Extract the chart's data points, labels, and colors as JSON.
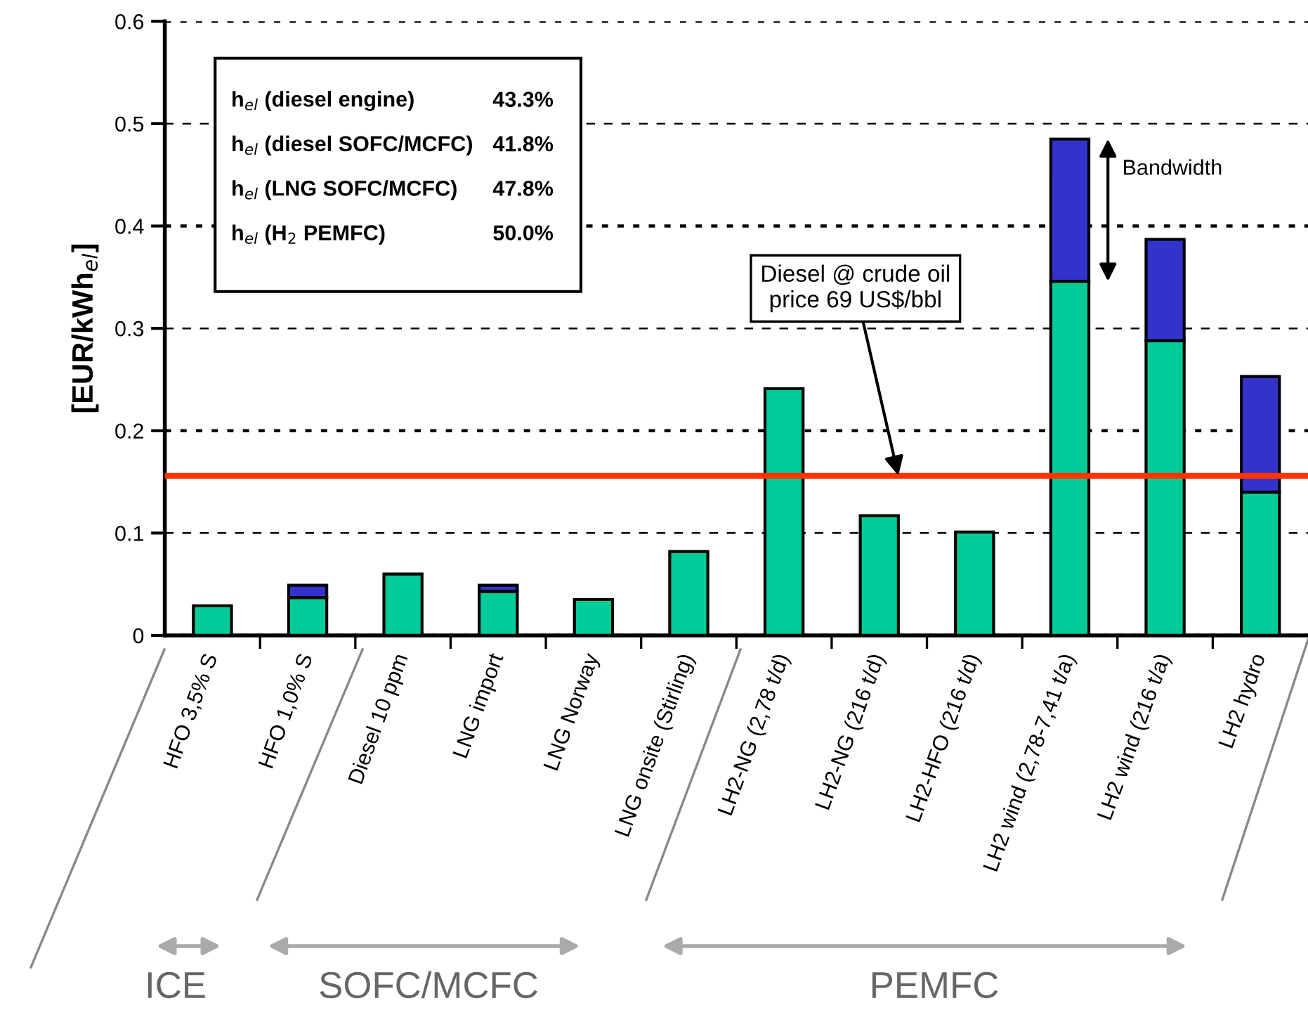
{
  "chart_data": {
    "type": "bar",
    "stacked": true,
    "ylabel": "[EUR/kWh$_{el}$]",
    "categories": [
      "HFO 3,5% S",
      "HFO 1,0% S",
      "Diesel 10 ppm",
      "LNG import",
      "LNG Norway",
      "LNG onsite (Stirling)",
      "LH2-NG (2,78 t/d)",
      "LH2-NG (216 t/d)",
      "LH2-HFO (216 t/d)",
      "LH2 wind (2,78-7,41 t/a)",
      "LH2 wind (216 t/a)",
      "LH2 hydro"
    ],
    "series": [
      {
        "color": "#00cc99",
        "values": [
          0.029,
          0.037,
          0.06,
          0.043,
          0.035,
          0.082,
          0.241,
          0.117,
          0.101,
          0.346,
          0.288,
          0.14
        ]
      },
      {
        "color": "#3333cc",
        "values": [
          null,
          0.012,
          null,
          0.006,
          null,
          null,
          null,
          null,
          null,
          0.139,
          0.099,
          0.113
        ]
      }
    ],
    "ylim": [
      0,
      0.6
    ],
    "yticks": [
      0,
      0.1,
      0.2,
      0.3,
      0.4,
      0.5,
      0.6
    ],
    "grid": "y",
    "ref_lines": [
      {
        "axis": "y",
        "value": 0.156,
        "label": "Diesel @ crude oil\nprice 69 US$/bbl",
        "color": "#ff3300"
      }
    ],
    "annotations": [
      "h$_{el}$ (diesel engine)",
      "43.3%",
      "h$_{el}$ (diesel SOFC/MCFC)",
      "41.8%",
      "h$_{el}$ (LNG SOFC/MCFC)",
      "47.8%",
      "h$_{el}$ (H$_{2}$ PEMFC)",
      "50.0%",
      {
        "text": "Bandwidth",
        "x": "LH2 wind (2,78-7,41 t/a)",
        "y": 0.485
      },
      "ICE",
      "SOFC/MCFC",
      "PEMFC"
    ]
  }
}
